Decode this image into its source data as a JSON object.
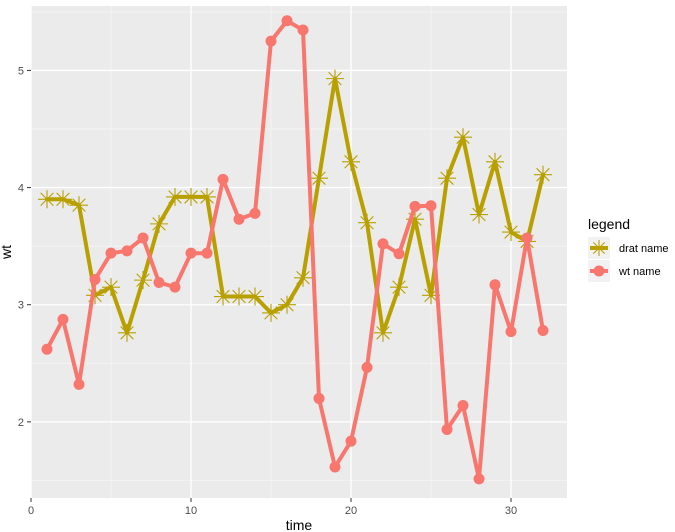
{
  "chart_data": {
    "type": "line",
    "title": "",
    "xlabel": "time",
    "ylabel": "wt",
    "xlim": [
      0,
      33.5
    ],
    "ylim": [
      1.35,
      5.55
    ],
    "x_ticks": [
      0,
      10,
      20,
      30
    ],
    "y_ticks": [
      2,
      3,
      4,
      5
    ],
    "grid": true,
    "legend": {
      "title": "legend",
      "position": "right"
    },
    "x": [
      1,
      2,
      3,
      4,
      5,
      6,
      7,
      8,
      9,
      10,
      11,
      12,
      13,
      14,
      15,
      16,
      17,
      18,
      19,
      20,
      21,
      22,
      23,
      24,
      25,
      26,
      27,
      28,
      29,
      30,
      31,
      32
    ],
    "series": [
      {
        "name": "drat name",
        "color": "#B8A000",
        "marker": "asterisk",
        "values": [
          3.9,
          3.9,
          3.85,
          3.08,
          3.15,
          2.76,
          3.21,
          3.69,
          3.92,
          3.92,
          3.92,
          3.07,
          3.07,
          3.07,
          2.93,
          3.0,
          3.23,
          4.08,
          4.93,
          4.22,
          3.7,
          2.76,
          3.15,
          3.73,
          3.08,
          4.08,
          4.43,
          3.77,
          4.22,
          3.62,
          3.54,
          4.11
        ]
      },
      {
        "name": "wt name",
        "color": "#F8766D",
        "marker": "circle",
        "values": [
          2.62,
          2.875,
          2.32,
          3.215,
          3.44,
          3.46,
          3.57,
          3.19,
          3.15,
          3.44,
          3.44,
          4.07,
          3.73,
          3.78,
          5.25,
          5.424,
          5.345,
          2.2,
          1.615,
          1.835,
          2.465,
          3.52,
          3.435,
          3.84,
          3.845,
          1.935,
          2.14,
          1.513,
          3.17,
          2.77,
          3.57,
          2.78
        ]
      }
    ]
  }
}
